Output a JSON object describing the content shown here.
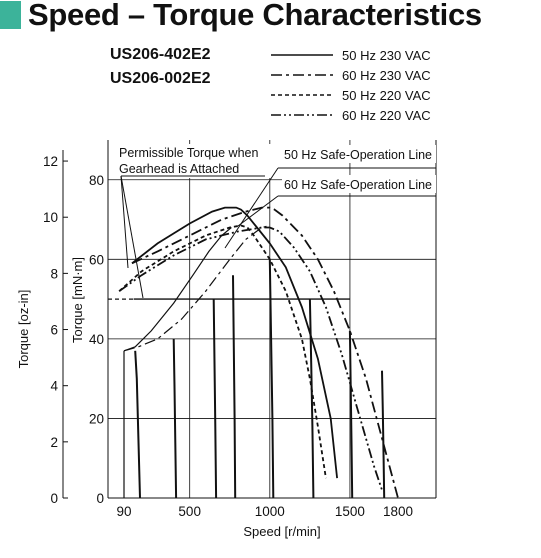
{
  "title": "Speed – Torque Characteristics",
  "colors": {
    "accent": "#3cb39a",
    "line": "#111111",
    "grid": "#111111",
    "background": "#ffffff"
  },
  "chart_data": {
    "type": "line",
    "models": [
      "US206-402E2",
      "US206-002E2"
    ],
    "xlabel": "Speed [r/min]",
    "ylabel_left": "Torque [oz-in]",
    "ylabel_inner": "Torque [mN·m]",
    "x_ticks": [
      90,
      500,
      1000,
      1500,
      1800
    ],
    "x_grid": [
      500,
      1000,
      1500
    ],
    "xlim": [
      0,
      2000
    ],
    "y_ticks_mNm": [
      0,
      20,
      40,
      60,
      80
    ],
    "y_grid_mNm": [
      20,
      40,
      60,
      80
    ],
    "ylim_mNm": [
      0,
      90
    ],
    "y_ticks_ozin": [
      0,
      2,
      4,
      6,
      8,
      10,
      12
    ],
    "ylim_ozin": [
      0,
      12.75
    ],
    "legend_position": "top-right",
    "series": [
      {
        "name": "50 Hz 230 VAC",
        "dash": "solid",
        "x": [
          140,
          300,
          500,
          640,
          720,
          760,
          790,
          820,
          860,
          920,
          1000,
          1100,
          1200,
          1300,
          1380,
          1420
        ],
        "y": [
          59,
          64,
          69,
          72,
          73,
          73,
          73,
          72.5,
          71,
          68,
          64,
          58,
          48,
          35,
          20,
          5
        ]
      },
      {
        "name": "60 Hz 230 VAC",
        "dash": "dash-dot",
        "x": [
          140,
          300,
          500,
          700,
          850,
          950,
          1000,
          1030,
          1080,
          1200,
          1300,
          1400,
          1500,
          1600,
          1700,
          1760,
          1800
        ],
        "y": [
          59,
          62,
          66,
          70,
          72,
          73,
          73,
          72.5,
          71,
          66,
          60,
          52,
          42,
          30,
          15,
          6,
          0
        ]
      },
      {
        "name": "50 Hz 220 VAC",
        "dash": "dotted",
        "x": [
          60,
          200,
          400,
          600,
          750,
          820,
          860,
          900,
          1000,
          1100,
          1200,
          1250,
          1300,
          1350
        ],
        "y": [
          52,
          57,
          62,
          66,
          68,
          68.5,
          68,
          66,
          60,
          52,
          40,
          30,
          18,
          5
        ]
      },
      {
        "name": "60 Hz 220 VAC",
        "dash": "dash-dot-dot",
        "x": [
          60,
          200,
          400,
          600,
          800,
          950,
          1000,
          1060,
          1150,
          1250,
          1350,
          1450,
          1550,
          1650,
          1700
        ],
        "y": [
          52,
          56,
          61,
          65,
          67,
          68,
          68,
          67,
          63,
          57,
          48,
          36,
          22,
          8,
          2
        ]
      }
    ],
    "permissible_torque_mNm": 50,
    "permissible_torque_x": [
      0,
      1500
    ],
    "safe_line_50hz": {
      "x": [
        90,
        160,
        260,
        400,
        520,
        620,
        700,
        760
      ],
      "y": [
        37,
        38,
        42,
        49,
        56,
        62,
        66,
        68
      ]
    },
    "safe_line_60hz": {
      "x": [
        90,
        180,
        300,
        450,
        600,
        750,
        850,
        950,
        1000
      ],
      "y": [
        37,
        38,
        40,
        45,
        52,
        60,
        65,
        68,
        68.5
      ]
    },
    "drop_curves": [
      {
        "x": [
          160,
          170,
          180,
          190
        ],
        "y": [
          37,
          30,
          15,
          0
        ]
      },
      {
        "x": [
          400,
          405,
          410,
          415
        ],
        "y": [
          40,
          28,
          14,
          0
        ]
      },
      {
        "x": [
          650,
          655,
          660,
          665
        ],
        "y": [
          50,
          34,
          18,
          0
        ]
      },
      {
        "x": [
          770,
          775,
          780,
          784
        ],
        "y": [
          56,
          38,
          20,
          0
        ]
      },
      {
        "x": [
          1000,
          1008,
          1016,
          1022
        ],
        "y": [
          60,
          40,
          20,
          0
        ]
      },
      {
        "x": [
          1250,
          1258,
          1266,
          1272
        ],
        "y": [
          50,
          34,
          18,
          0
        ]
      },
      {
        "x": [
          1500,
          1505,
          1510,
          1514
        ],
        "y": [
          42,
          28,
          14,
          0
        ]
      },
      {
        "x": [
          1700,
          1705,
          1710,
          1714
        ],
        "y": [
          32,
          22,
          10,
          0
        ]
      }
    ],
    "annotations": {
      "permissible": [
        "Permissible Torque when",
        "Gearhead is Attached"
      ],
      "safe_50hz": "50 Hz Safe-Operation Line",
      "safe_60hz": "60 Hz Safe-Operation Line"
    }
  }
}
